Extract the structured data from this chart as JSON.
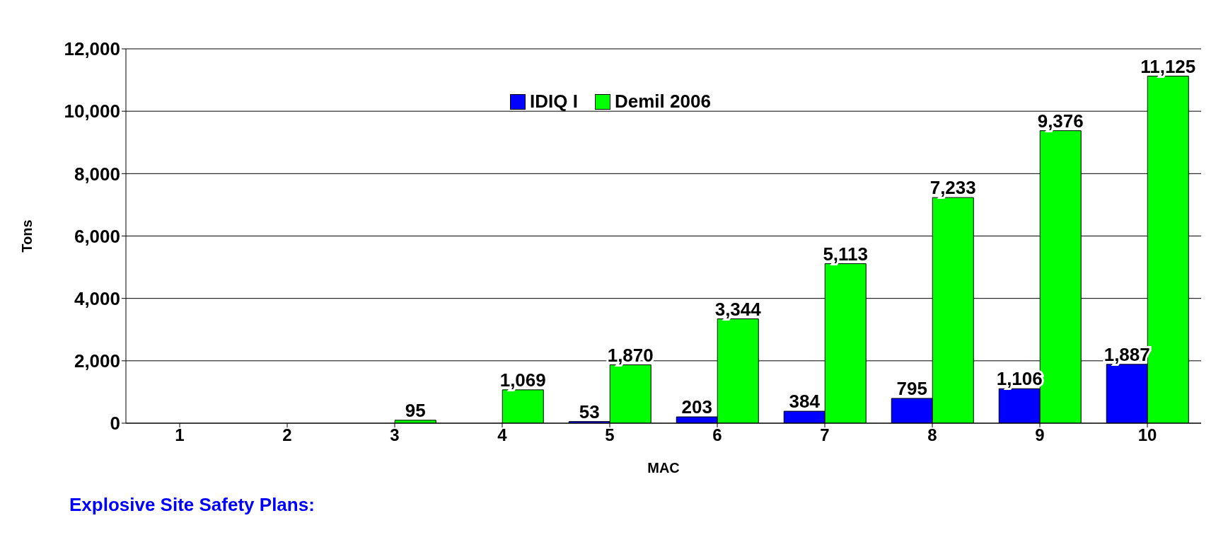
{
  "chart_data": {
    "type": "bar",
    "xlabel": "MAC",
    "ylabel": "Tons",
    "categories": [
      "1",
      "2",
      "3",
      "4",
      "5",
      "6",
      "7",
      "8",
      "9",
      "10"
    ],
    "series": [
      {
        "name": "IDIQ I",
        "color": "#0000ff",
        "values": [
          null,
          null,
          null,
          null,
          53,
          203,
          384,
          795,
          1106,
          1887
        ],
        "value_labels": [
          null,
          null,
          null,
          null,
          "53",
          "203",
          "384",
          "795",
          "1,106",
          "1,887"
        ]
      },
      {
        "name": "Demil 2006",
        "color": "#00ff00",
        "values": [
          null,
          null,
          95,
          1069,
          1870,
          3344,
          5113,
          7233,
          9376,
          11125
        ],
        "value_labels": [
          null,
          null,
          "95",
          "1,069",
          "1,870",
          "3,344",
          "5,113",
          "7,233",
          "9,376",
          "11,125"
        ]
      }
    ],
    "ylim": [
      0,
      12000
    ],
    "yticks": [
      0,
      {
        "value": 2000,
        "label": "2,000"
      },
      {
        "value": 4000,
        "label": "4,000"
      },
      {
        "value": 6000,
        "label": "6,000"
      },
      {
        "value": 8000,
        "label": "8,000"
      },
      {
        "value": 10000,
        "label": "10,000"
      },
      {
        "value": 12000,
        "label": "12,000"
      }
    ],
    "grid": "y",
    "legend": "top",
    "annotations": [
      "Explosive Site Safety Plans:"
    ]
  }
}
